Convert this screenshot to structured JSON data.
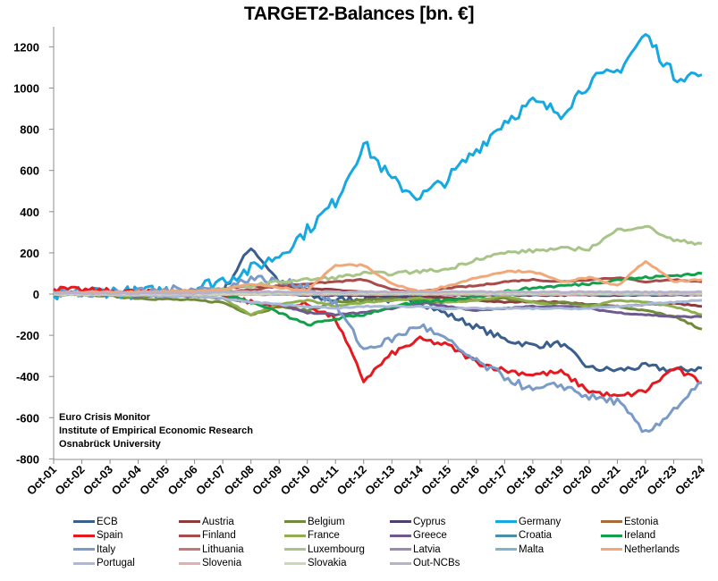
{
  "chart_data": {
    "type": "line",
    "title": "TARGET2-Balances [bn. €]",
    "xlabel": "",
    "ylabel": "",
    "ylim": [
      -800,
      1300
    ],
    "yticks": [
      -800,
      -600,
      -400,
      -200,
      0,
      200,
      400,
      600,
      800,
      1000,
      1200
    ],
    "ytick_labels": [
      "-800",
      "-600",
      "-400",
      "-200",
      "0",
      "200",
      "400",
      "600",
      "800",
      "1000",
      "1200"
    ],
    "categories": [
      "Oct-01",
      "Oct-02",
      "Oct-03",
      "Oct-04",
      "Oct-05",
      "Oct-06",
      "Oct-07",
      "Oct-08",
      "Oct-09",
      "Oct-10",
      "Oct-11",
      "Oct-12",
      "Oct-13",
      "Oct-14",
      "Oct-15",
      "Oct-16",
      "Oct-17",
      "Oct-18",
      "Oct-19",
      "Oct-20",
      "Oct-21",
      "Oct-22",
      "Oct-23",
      "Oct-24"
    ],
    "grid": false,
    "legend_position": "bottom",
    "annotation": [
      "Euro Crisis Monitor",
      "Institute of Empirical Economic Research",
      "Osnabrück University"
    ],
    "series": [
      {
        "name": "ECB",
        "color": "#3A5F8E",
        "values": [
          5,
          5,
          0,
          -5,
          0,
          5,
          10,
          230,
          60,
          -10,
          -30,
          -20,
          -30,
          -40,
          -100,
          -160,
          -220,
          -250,
          -240,
          -360,
          -370,
          -350,
          -370,
          -360
        ]
      },
      {
        "name": "Austria",
        "color": "#8E3B3B",
        "values": [
          5,
          5,
          5,
          5,
          10,
          15,
          25,
          40,
          35,
          25,
          20,
          10,
          0,
          -15,
          -20,
          -30,
          -40,
          -35,
          -40,
          -50,
          -60,
          -50,
          -45,
          -60
        ]
      },
      {
        "name": "Belgium",
        "color": "#6F8A3A",
        "values": [
          5,
          0,
          -10,
          -20,
          -25,
          -30,
          -40,
          -100,
          -60,
          -80,
          -40,
          -30,
          -20,
          -30,
          -40,
          -30,
          -20,
          -40,
          -40,
          -50,
          -60,
          -80,
          -110,
          -170
        ]
      },
      {
        "name": "Cyprus",
        "color": "#4E3F6E",
        "values": [
          0,
          0,
          0,
          0,
          0,
          0,
          0,
          0,
          0,
          -5,
          -5,
          -10,
          -10,
          -10,
          -5,
          -5,
          -5,
          -5,
          -5,
          -5,
          -5,
          -5,
          -5,
          -5
        ]
      },
      {
        "name": "Germany",
        "color": "#16A8E0",
        "values": [
          -10,
          10,
          15,
          5,
          20,
          30,
          70,
          120,
          190,
          310,
          450,
          730,
          550,
          470,
          560,
          700,
          840,
          930,
          880,
          1030,
          1080,
          1260,
          1060,
          1065
        ]
      },
      {
        "name": "Estonia",
        "color": "#A86B38",
        "values": [
          0,
          0,
          0,
          0,
          0,
          0,
          0,
          0,
          0,
          0,
          0,
          0,
          0,
          0,
          0,
          0,
          0,
          0,
          0,
          5,
          5,
          5,
          5,
          5
        ]
      },
      {
        "name": "Spain",
        "color": "#E5191E",
        "values": [
          25,
          20,
          15,
          10,
          5,
          0,
          0,
          -40,
          -60,
          -50,
          -120,
          -420,
          -290,
          -220,
          -250,
          -330,
          -370,
          -390,
          -380,
          -470,
          -500,
          -470,
          -360,
          -430
        ]
      },
      {
        "name": "Finland",
        "color": "#A74B4B",
        "values": [
          0,
          0,
          0,
          5,
          5,
          5,
          10,
          20,
          40,
          50,
          60,
          70,
          20,
          10,
          30,
          40,
          60,
          70,
          60,
          70,
          80,
          60,
          70,
          60
        ]
      },
      {
        "name": "France",
        "color": "#8FAF4E",
        "values": [
          0,
          0,
          -5,
          -10,
          -5,
          -10,
          -20,
          -100,
          -50,
          -30,
          -60,
          -40,
          -30,
          -20,
          -40,
          -30,
          -10,
          -40,
          -60,
          -60,
          -30,
          -40,
          -60,
          -100
        ]
      },
      {
        "name": "Greece",
        "color": "#6E5A8E",
        "values": [
          0,
          -5,
          -5,
          -10,
          -10,
          -10,
          -20,
          -40,
          -50,
          -90,
          -100,
          -90,
          -70,
          -40,
          -60,
          -80,
          -70,
          -60,
          -60,
          -70,
          -90,
          -100,
          -110,
          -110
        ]
      },
      {
        "name": "Croatia",
        "color": "#4A8FAA",
        "values": [
          0,
          0,
          0,
          0,
          0,
          0,
          0,
          0,
          0,
          0,
          0,
          0,
          0,
          0,
          0,
          0,
          0,
          0,
          0,
          0,
          0,
          0,
          0,
          -5
        ]
      },
      {
        "name": "Ireland",
        "color": "#12A04A",
        "values": [
          5,
          5,
          5,
          5,
          5,
          5,
          5,
          -40,
          -90,
          -150,
          -120,
          -100,
          -60,
          -40,
          -30,
          -10,
          10,
          30,
          40,
          50,
          70,
          80,
          90,
          100
        ]
      },
      {
        "name": "Italy",
        "color": "#7A9AC8",
        "values": [
          0,
          5,
          5,
          10,
          20,
          30,
          20,
          80,
          60,
          40,
          -50,
          -270,
          -220,
          -150,
          -230,
          -330,
          -400,
          -470,
          -440,
          -500,
          -520,
          -680,
          -560,
          -430
        ]
      },
      {
        "name": "Lithuania",
        "color": "#C07878",
        "values": [
          0,
          0,
          0,
          0,
          0,
          0,
          0,
          0,
          0,
          0,
          0,
          0,
          0,
          0,
          0,
          0,
          0,
          0,
          0,
          0,
          0,
          5,
          5,
          5
        ]
      },
      {
        "name": "Luxembourg",
        "color": "#A8C488",
        "values": [
          0,
          0,
          0,
          5,
          10,
          15,
          20,
          40,
          60,
          70,
          80,
          100,
          100,
          110,
          120,
          170,
          200,
          210,
          220,
          220,
          310,
          330,
          260,
          245
        ]
      },
      {
        "name": "Latvia",
        "color": "#9A8AB0",
        "values": [
          0,
          0,
          0,
          0,
          0,
          0,
          0,
          0,
          0,
          0,
          0,
          0,
          0,
          0,
          0,
          0,
          0,
          0,
          0,
          0,
          0,
          0,
          0,
          0
        ]
      },
      {
        "name": "Malta",
        "color": "#7FB5C8",
        "values": [
          0,
          0,
          0,
          0,
          0,
          0,
          0,
          0,
          0,
          0,
          0,
          0,
          0,
          0,
          0,
          0,
          0,
          0,
          0,
          0,
          0,
          0,
          0,
          0
        ]
      },
      {
        "name": "Netherlands",
        "color": "#F0A878",
        "values": [
          5,
          10,
          10,
          10,
          15,
          15,
          20,
          50,
          30,
          20,
          140,
          140,
          50,
          10,
          40,
          80,
          110,
          110,
          60,
          80,
          40,
          160,
          60,
          70
        ]
      },
      {
        "name": "Portugal",
        "color": "#A8BAD8",
        "values": [
          0,
          0,
          -5,
          -5,
          -10,
          -10,
          -20,
          -40,
          -50,
          -60,
          -70,
          -60,
          -60,
          -60,
          -70,
          -70,
          -70,
          -70,
          -70,
          -70,
          -60,
          -50,
          -40,
          -30
        ]
      },
      {
        "name": "Slovenia",
        "color": "#E0B0B0",
        "values": [
          0,
          0,
          0,
          0,
          0,
          0,
          0,
          0,
          0,
          0,
          0,
          0,
          0,
          0,
          0,
          0,
          0,
          0,
          0,
          0,
          0,
          0,
          0,
          0
        ]
      },
      {
        "name": "Slovakia",
        "color": "#C8D8B8",
        "values": [
          0,
          0,
          0,
          0,
          0,
          0,
          0,
          0,
          5,
          5,
          5,
          5,
          5,
          5,
          5,
          5,
          5,
          5,
          5,
          5,
          5,
          5,
          5,
          5
        ]
      },
      {
        "name": "Out-NCBs",
        "color": "#B8B0CC",
        "values": [
          5,
          5,
          5,
          5,
          5,
          5,
          10,
          10,
          10,
          10,
          10,
          10,
          10,
          10,
          10,
          10,
          10,
          10,
          10,
          10,
          10,
          10,
          10,
          10
        ]
      }
    ],
    "legend_layout": [
      [
        "ECB",
        "Austria",
        "Belgium",
        "Cyprus",
        "Germany",
        "Estonia"
      ],
      [
        "Spain",
        "Finland",
        "France",
        "Greece",
        "Croatia",
        "Ireland"
      ],
      [
        "Italy",
        "Lithuania",
        "Luxembourg",
        "Latvia",
        "Malta",
        "Netherlands"
      ],
      [
        "Portugal",
        "Slovenia",
        "Slovakia",
        "Out-NCBs"
      ]
    ]
  },
  "annotation": {
    "line1": "Euro Crisis Monitor",
    "line2": "Institute of Empirical Economic Research",
    "line3": "Osnabrück University"
  }
}
